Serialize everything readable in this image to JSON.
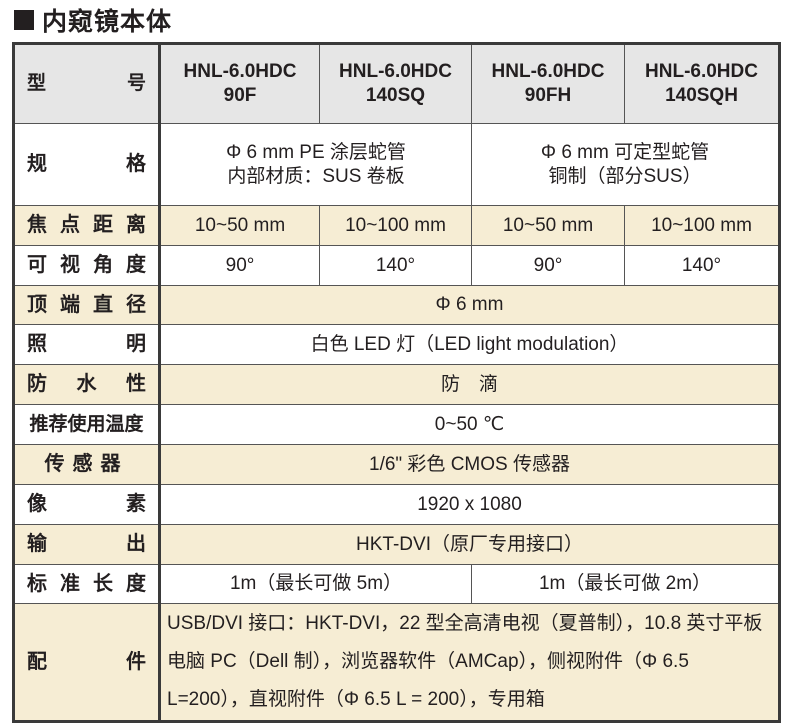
{
  "title": "内窥镜本体",
  "header": {
    "label": "型　号",
    "models": [
      [
        "HNL-6.0HDC",
        "90F"
      ],
      [
        "HNL-6.0HDC",
        "140SQ"
      ],
      [
        "HNL-6.0HDC",
        "90FH"
      ],
      [
        "HNL-6.0HDC",
        "140SQH"
      ]
    ]
  },
  "rows": {
    "spec": {
      "label": "规　格",
      "a": [
        "Φ 6 mm PE 涂层蛇管",
        "内部材质：SUS 卷板"
      ],
      "b": [
        "Φ 6 mm 可定型蛇管",
        "铜制（部分SUS）"
      ]
    },
    "focus": {
      "label": "焦点距离",
      "values": [
        "10~50 mm",
        "10~100 mm",
        "10~50 mm",
        "10~100 mm"
      ]
    },
    "angle": {
      "label": "可视角度",
      "values": [
        "90°",
        "140°",
        "90°",
        "140°"
      ]
    },
    "tip": {
      "label": "顶端直径",
      "value": "Φ 6 mm"
    },
    "light": {
      "label": "照　明",
      "value": "白色 LED 灯（LED light modulation）"
    },
    "water": {
      "label": "防水性",
      "value": "防　滴"
    },
    "temp": {
      "label": "推荐使用温度",
      "value": "0~50 ℃"
    },
    "sensor": {
      "label": "传感器",
      "value": "1/6\" 彩色 CMOS 传感器"
    },
    "pixel": {
      "label": "像　素",
      "value": "1920 x 1080"
    },
    "output": {
      "label": "输　出",
      "value": "HKT-DVI（原厂专用接口）"
    },
    "length": {
      "label": "标准长度",
      "a": "1m（最长可做 5m）",
      "b": "1m（最长可做 2m）"
    },
    "accessory": {
      "label": "配　件",
      "value": "USB/DVI 接口：HKT-DVI，22 型全高清电视（夏普制），10.8 英寸平板电脑 PC（Dell 制），浏览器软件（AMCap），侧视附件（Φ 6.5 L=200），直视附件（Φ 6.5 L = 200），专用箱"
    }
  }
}
